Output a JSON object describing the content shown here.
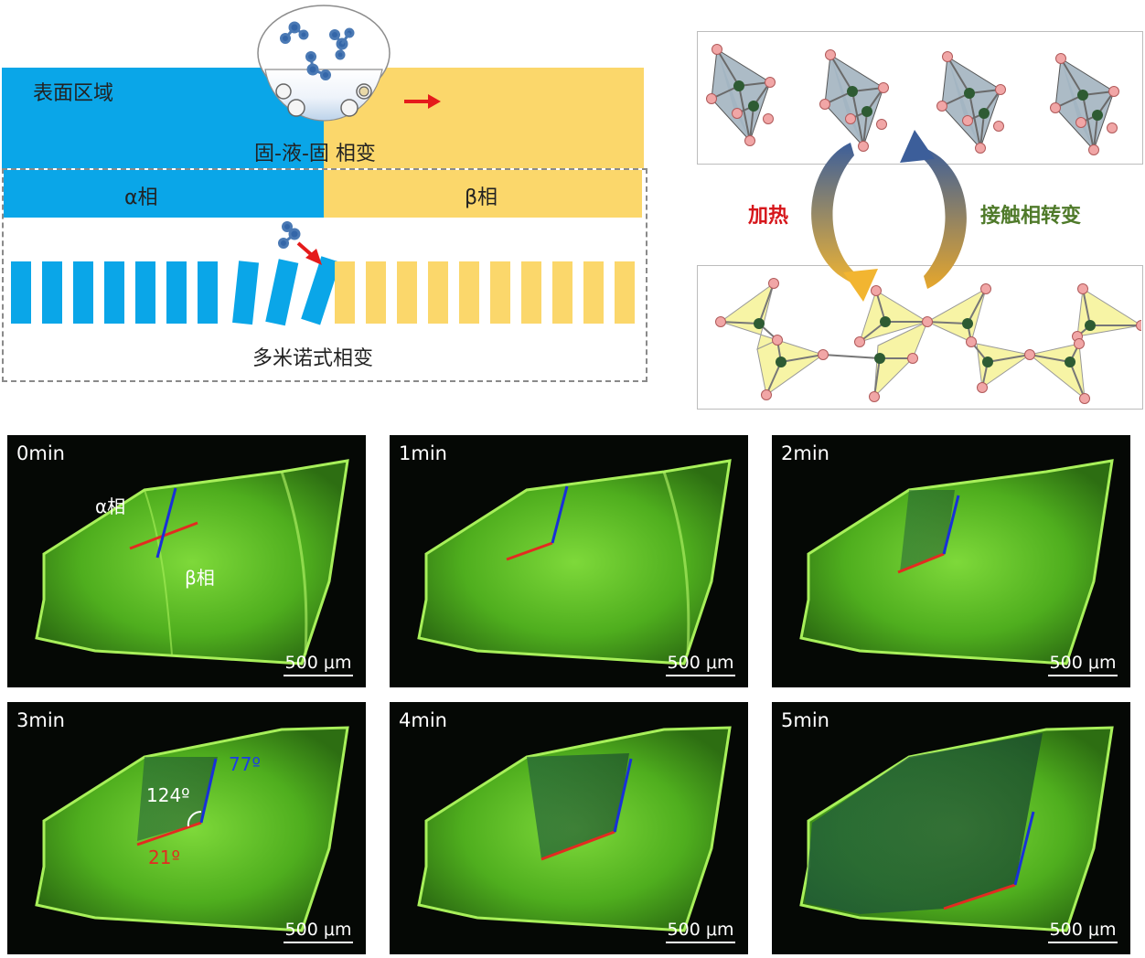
{
  "schematic": {
    "surface_region": "表面区域",
    "sls_transition": "固-液-固 相变",
    "alpha_phase": "α相",
    "beta_phase": "β相",
    "domino_transition": "多米诺式相变"
  },
  "mechanism": {
    "heating": "加热",
    "contact_transition": "接触相转变"
  },
  "colors": {
    "alpha": "#0aa6e8",
    "beta": "#fbd76b",
    "arrow": "#e51b1b",
    "heating_text": "#d6161b",
    "contact_text": "#4f7a2a",
    "line_red": "#e32b20",
    "line_blue": "#1830d8"
  },
  "micrographs": {
    "scale_bar": "500 μm",
    "alpha_label": "α相",
    "beta_label": "β相",
    "panels": [
      {
        "time": "0min"
      },
      {
        "time": "1min"
      },
      {
        "time": "2min"
      },
      {
        "time": "3min",
        "angle_mid": "124º",
        "angle_blue": "77º",
        "angle_red": "21º"
      },
      {
        "time": "4min"
      },
      {
        "time": "5min"
      }
    ]
  }
}
